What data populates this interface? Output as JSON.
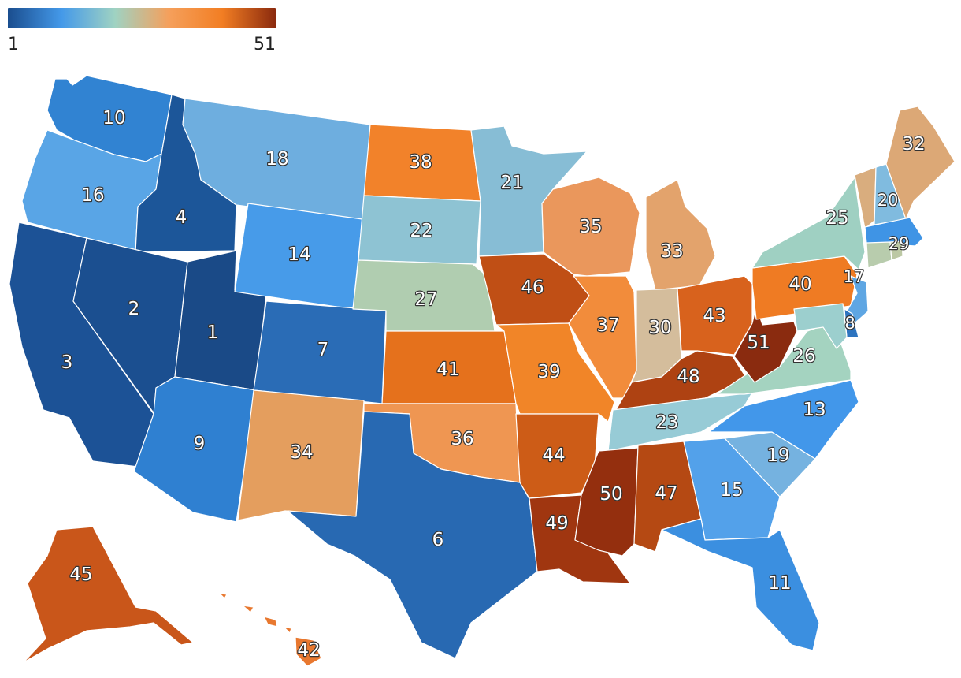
{
  "legend": {
    "min_label": "1",
    "max_label": "51",
    "min": 1,
    "max": 51,
    "gradient": [
      "#1a4d8e",
      "#4499e9",
      "#9fd2c2",
      "#f5a05c",
      "#f27e23",
      "#8b2a0e"
    ]
  },
  "states": [
    {
      "code": "WA",
      "rank": 10,
      "color": "#3183d2"
    },
    {
      "code": "OR",
      "rank": 16,
      "color": "#59a5e6"
    },
    {
      "code": "CA",
      "rank": 3,
      "color": "#1c5296"
    },
    {
      "code": "ID",
      "rank": 4,
      "color": "#1c5699"
    },
    {
      "code": "NV",
      "rank": 2,
      "color": "#1b4f90"
    },
    {
      "code": "UT",
      "rank": 1,
      "color": "#1a4a87"
    },
    {
      "code": "AZ",
      "rank": 9,
      "color": "#2f80d1"
    },
    {
      "code": "MT",
      "rank": 18,
      "color": "#6eaedf"
    },
    {
      "code": "WY",
      "rank": 14,
      "color": "#479be9"
    },
    {
      "code": "CO",
      "rank": 7,
      "color": "#2a6cb6"
    },
    {
      "code": "NM",
      "rank": 34,
      "color": "#e49e5e"
    },
    {
      "code": "ND",
      "rank": 38,
      "color": "#f2822a"
    },
    {
      "code": "SD",
      "rank": 22,
      "color": "#8ec3d3"
    },
    {
      "code": "NE",
      "rank": 27,
      "color": "#b0cdb0"
    },
    {
      "code": "KS",
      "rank": 41,
      "color": "#e5711c"
    },
    {
      "code": "OK",
      "rank": 36,
      "color": "#ef9652"
    },
    {
      "code": "TX",
      "rank": 6,
      "color": "#2869b2"
    },
    {
      "code": "MN",
      "rank": 21,
      "color": "#87bdd5"
    },
    {
      "code": "IA",
      "rank": 46,
      "color": "#c04f15"
    },
    {
      "code": "MO",
      "rank": 39,
      "color": "#f18528"
    },
    {
      "code": "AR",
      "rank": 44,
      "color": "#cd5c17"
    },
    {
      "code": "LA",
      "rank": 49,
      "color": "#a03610"
    },
    {
      "code": "WI",
      "rank": 35,
      "color": "#ea975c"
    },
    {
      "code": "IL",
      "rank": 37,
      "color": "#f28c3b"
    },
    {
      "code": "MI",
      "rank": 33,
      "color": "#e3a36c"
    },
    {
      "code": "IN",
      "rank": 30,
      "color": "#d4bd9c"
    },
    {
      "code": "OH",
      "rank": 43,
      "color": "#d8621d"
    },
    {
      "code": "KY",
      "rank": 48,
      "color": "#ae4212"
    },
    {
      "code": "TN",
      "rank": 23,
      "color": "#97cbd6"
    },
    {
      "code": "MS",
      "rank": 50,
      "color": "#942f0e"
    },
    {
      "code": "AL",
      "rank": 47,
      "color": "#b54913"
    },
    {
      "code": "GA",
      "rank": 15,
      "color": "#53a1ea"
    },
    {
      "code": "FL",
      "rank": 11,
      "color": "#3b8fe0"
    },
    {
      "code": "SC",
      "rank": 19,
      "color": "#75b2e0"
    },
    {
      "code": "NC",
      "rank": 13,
      "color": "#4297ea"
    },
    {
      "code": "VA",
      "rank": 26,
      "color": "#a4d3c0"
    },
    {
      "code": "WV",
      "rank": 51,
      "color": "#8a2b0f"
    },
    {
      "code": "PA",
      "rank": 40,
      "color": "#ef7b23"
    },
    {
      "code": "NY",
      "rank": 25,
      "color": "#9fd0c2"
    },
    {
      "code": "VT",
      "rank": 31,
      "color": "#d9ad7e"
    },
    {
      "code": "NH",
      "rank": 20,
      "color": "#80bbdf"
    },
    {
      "code": "ME",
      "rank": 32,
      "color": "#dca876"
    },
    {
      "code": "MA",
      "rank": 12,
      "color": "#3f94e5"
    },
    {
      "code": "CT",
      "rank": 28,
      "color": "#b8ccad"
    },
    {
      "code": "RI",
      "rank": 29,
      "color": "#bcc8a4"
    },
    {
      "code": "NJ",
      "rank": 17,
      "color": "#5ea6e3"
    },
    {
      "code": "DE",
      "rank": 8,
      "color": "#2d74bf"
    },
    {
      "code": "MD",
      "rank": 24,
      "color": "#9ccfce"
    },
    {
      "code": "AK",
      "rank": 45,
      "color": "#c9561a"
    },
    {
      "code": "HI",
      "rank": 42,
      "color": "#e8782f"
    }
  ],
  "labels": [
    {
      "rank": "10",
      "state": "WA"
    },
    {
      "rank": "16",
      "state": "OR"
    },
    {
      "rank": "3",
      "state": "CA"
    },
    {
      "rank": "4",
      "state": "ID"
    },
    {
      "rank": "2",
      "state": "NV"
    },
    {
      "rank": "1",
      "state": "UT"
    },
    {
      "rank": "9",
      "state": "AZ"
    },
    {
      "rank": "18",
      "state": "MT"
    },
    {
      "rank": "14",
      "state": "WY"
    },
    {
      "rank": "7",
      "state": "CO"
    },
    {
      "rank": "34",
      "state": "NM"
    },
    {
      "rank": "38",
      "state": "ND"
    },
    {
      "rank": "22",
      "state": "SD"
    },
    {
      "rank": "27",
      "state": "NE"
    },
    {
      "rank": "41",
      "state": "KS"
    },
    {
      "rank": "36",
      "state": "OK"
    },
    {
      "rank": "6",
      "state": "TX"
    },
    {
      "rank": "21",
      "state": "MN"
    },
    {
      "rank": "46",
      "state": "IA"
    },
    {
      "rank": "39",
      "state": "MO"
    },
    {
      "rank": "44",
      "state": "AR"
    },
    {
      "rank": "49",
      "state": "LA"
    },
    {
      "rank": "35",
      "state": "WI"
    },
    {
      "rank": "37",
      "state": "IL"
    },
    {
      "rank": "33",
      "state": "MI"
    },
    {
      "rank": "30",
      "state": "IN"
    },
    {
      "rank": "43",
      "state": "OH"
    },
    {
      "rank": "48",
      "state": "KY"
    },
    {
      "rank": "23",
      "state": "TN"
    },
    {
      "rank": "50",
      "state": "MS"
    },
    {
      "rank": "47",
      "state": "AL"
    },
    {
      "rank": "15",
      "state": "GA"
    },
    {
      "rank": "11",
      "state": "FL"
    },
    {
      "rank": "19",
      "state": "SC"
    },
    {
      "rank": "13",
      "state": "NC"
    },
    {
      "rank": "26",
      "state": "VA"
    },
    {
      "rank": "51",
      "state": "WV"
    },
    {
      "rank": "40",
      "state": "PA"
    },
    {
      "rank": "25",
      "state": "NY"
    },
    {
      "rank": "20",
      "state": "NH"
    },
    {
      "rank": "32",
      "state": "ME"
    },
    {
      "rank": "29",
      "state": "RI"
    },
    {
      "rank": "17",
      "state": "NJ"
    },
    {
      "rank": "8",
      "state": "DE"
    },
    {
      "rank": "45",
      "state": "AK"
    },
    {
      "rank": "42",
      "state": "HI"
    }
  ]
}
